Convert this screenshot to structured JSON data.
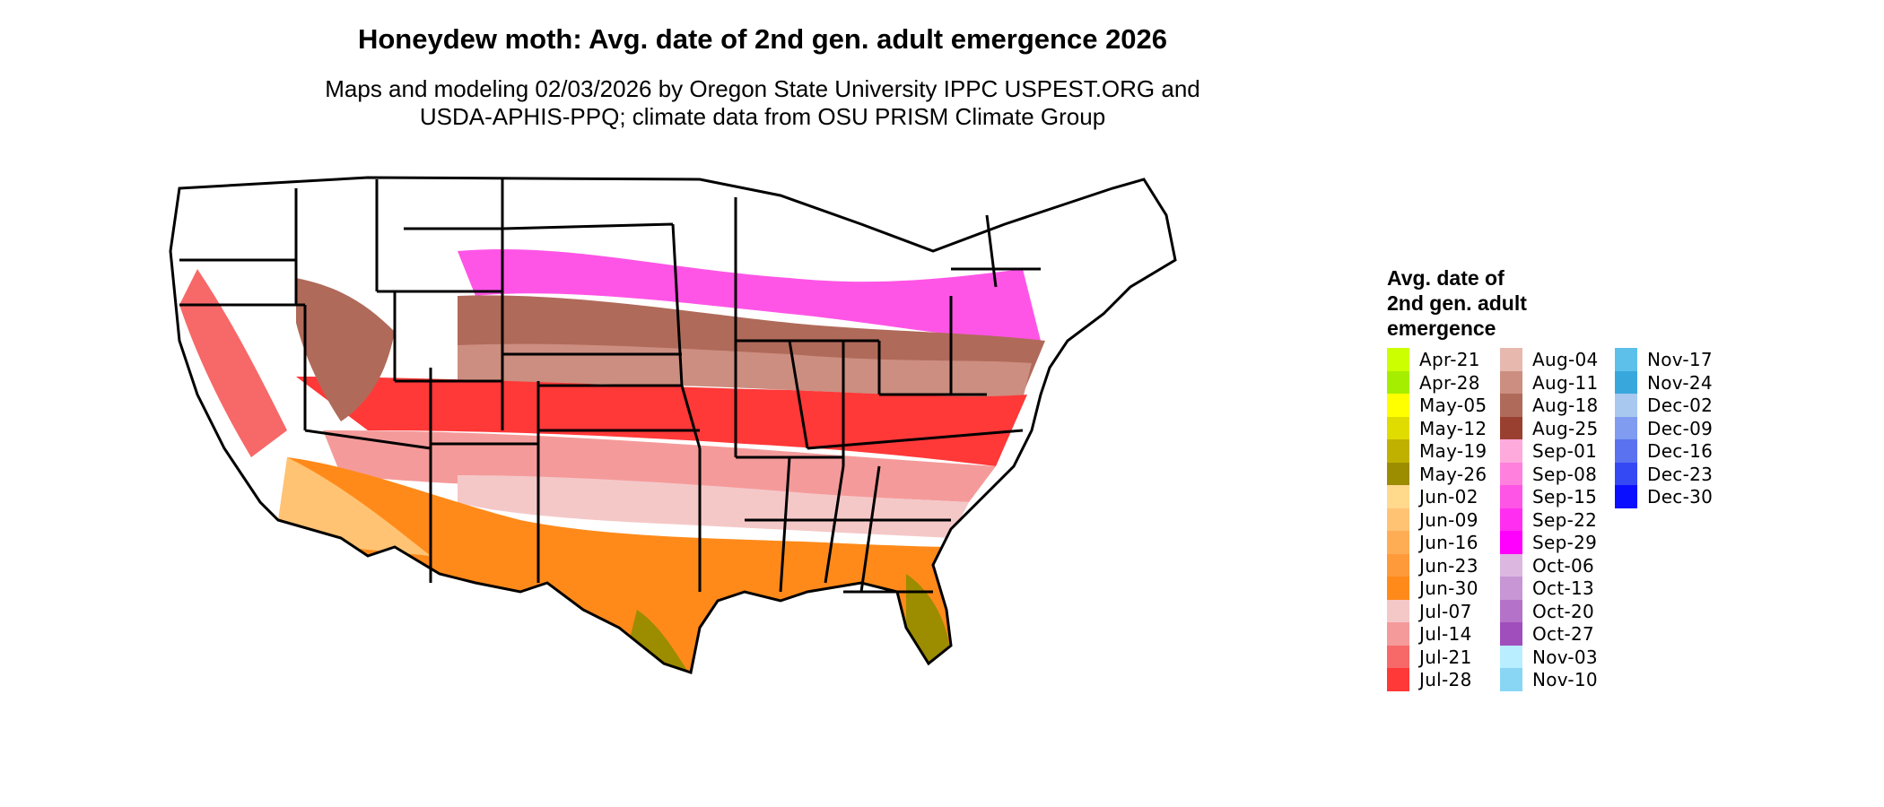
{
  "title": "Honeydew moth: Avg. date of 2nd gen. adult emergence 2026",
  "subtitle": {
    "line1": "Maps and modeling 02/03/2026 by Oregon State University IPPC USPEST.ORG and",
    "line2": "USDA-APHIS-PPQ; climate data from OSU PRISM Climate Group"
  },
  "legend": {
    "title_line1": "Avg. date of",
    "title_line2": "2nd gen. adult",
    "title_line3": "emergence",
    "columns": [
      [
        {
          "label": "Apr-21",
          "color": "#ccff00"
        },
        {
          "label": "Apr-28",
          "color": "#a6ee00"
        },
        {
          "label": "May-05",
          "color": "#ffff00"
        },
        {
          "label": "May-12",
          "color": "#e0dc00"
        },
        {
          "label": "May-19",
          "color": "#c0b000"
        },
        {
          "label": "May-26",
          "color": "#9c8c00"
        },
        {
          "label": "Jun-02",
          "color": "#ffd98c"
        },
        {
          "label": "Jun-09",
          "color": "#ffc373"
        },
        {
          "label": "Jun-16",
          "color": "#ffad55"
        },
        {
          "label": "Jun-23",
          "color": "#ff9a3a"
        },
        {
          "label": "Jun-30",
          "color": "#ff8a1a"
        },
        {
          "label": "Jul-07",
          "color": "#f5c8c8"
        },
        {
          "label": "Jul-14",
          "color": "#f59a9a"
        },
        {
          "label": "Jul-21",
          "color": "#f76868"
        },
        {
          "label": "Jul-28",
          "color": "#ff3838"
        }
      ],
      [
        {
          "label": "Aug-04",
          "color": "#e6b8ae"
        },
        {
          "label": "Aug-11",
          "color": "#cc8e80"
        },
        {
          "label": "Aug-18",
          "color": "#b06a5a"
        },
        {
          "label": "Aug-25",
          "color": "#9a4030"
        },
        {
          "label": "Sep-01",
          "color": "#ffaadd"
        },
        {
          "label": "Sep-08",
          "color": "#ff80dd"
        },
        {
          "label": "Sep-15",
          "color": "#ff55e6"
        },
        {
          "label": "Sep-22",
          "color": "#ff2ef0"
        },
        {
          "label": "Sep-29",
          "color": "#ff00ff"
        },
        {
          "label": "Oct-06",
          "color": "#dcb8e0"
        },
        {
          "label": "Oct-13",
          "color": "#c896d4"
        },
        {
          "label": "Oct-20",
          "color": "#b472c8"
        },
        {
          "label": "Oct-27",
          "color": "#a04ebc"
        },
        {
          "label": "Nov-03",
          "color": "#b8eeff"
        },
        {
          "label": "Nov-10",
          "color": "#88d6f4"
        }
      ],
      [
        {
          "label": "Nov-17",
          "color": "#5cc0ea"
        },
        {
          "label": "Nov-24",
          "color": "#38a8dc"
        },
        {
          "label": "Dec-02",
          "color": "#a8c8f0"
        },
        {
          "label": "Dec-09",
          "color": "#7f9cf0"
        },
        {
          "label": "Dec-16",
          "color": "#5a72f0"
        },
        {
          "label": "Dec-23",
          "color": "#3448f4"
        },
        {
          "label": "Dec-30",
          "color": "#0a10ff"
        }
      ]
    ]
  }
}
